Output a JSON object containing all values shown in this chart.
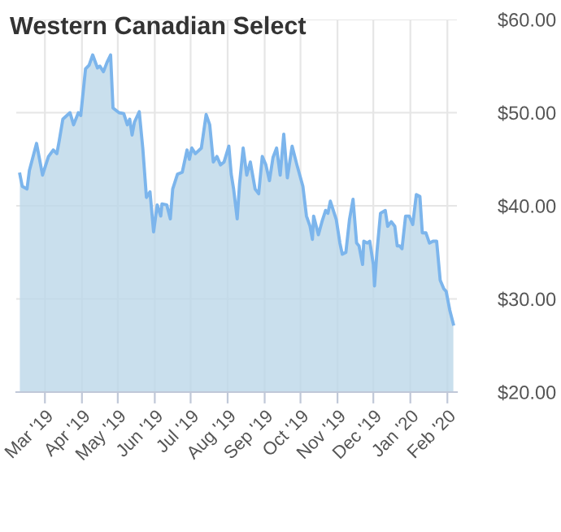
{
  "chart_data": {
    "type": "area",
    "title": "Western Canadian Select",
    "x": [
      "2019-02-08",
      "2019-02-10",
      "2019-02-14",
      "2019-02-16",
      "2019-02-22",
      "2019-02-27",
      "2019-03-04",
      "2019-03-08",
      "2019-03-11",
      "2019-03-13",
      "2019-03-16",
      "2019-03-22",
      "2019-03-25",
      "2019-03-29",
      "2019-03-31",
      "2019-04-04",
      "2019-04-07",
      "2019-04-10",
      "2019-04-14",
      "2019-04-16",
      "2019-04-19",
      "2019-04-22",
      "2019-04-25",
      "2019-04-27",
      "2019-05-02",
      "2019-05-06",
      "2019-05-09",
      "2019-05-11",
      "2019-05-13",
      "2019-05-15",
      "2019-05-19",
      "2019-05-22",
      "2019-05-25",
      "2019-05-28",
      "2019-05-31",
      "2019-06-03",
      "2019-06-06",
      "2019-06-07",
      "2019-06-11",
      "2019-06-14",
      "2019-06-16",
      "2019-06-20",
      "2019-06-24",
      "2019-06-28",
      "2019-06-30",
      "2019-07-02",
      "2019-07-05",
      "2019-07-10",
      "2019-07-14",
      "2019-07-17",
      "2019-07-20",
      "2019-07-23",
      "2019-07-26",
      "2019-07-29",
      "2019-08-02",
      "2019-08-04",
      "2019-08-06",
      "2019-08-09",
      "2019-08-11",
      "2019-08-14",
      "2019-08-17",
      "2019-08-20",
      "2019-08-24",
      "2019-08-27",
      "2019-08-30",
      "2019-09-02",
      "2019-09-05",
      "2019-09-08",
      "2019-09-11",
      "2019-09-14",
      "2019-09-17",
      "2019-09-20",
      "2019-09-24",
      "2019-09-28",
      "2019-10-03",
      "2019-10-06",
      "2019-10-09",
      "2019-10-11",
      "2019-10-12",
      "2019-10-16",
      "2019-10-19",
      "2019-10-22",
      "2019-10-24",
      "2019-10-26",
      "2019-10-31",
      "2019-11-03",
      "2019-11-05",
      "2019-11-08",
      "2019-11-11",
      "2019-11-14",
      "2019-11-17",
      "2019-11-19",
      "2019-11-22",
      "2019-11-23",
      "2019-11-26",
      "2019-11-28",
      "2019-12-01",
      "2019-12-02",
      "2019-12-04",
      "2019-12-07",
      "2019-12-11",
      "2019-12-13",
      "2019-12-16",
      "2019-12-19",
      "2019-12-21",
      "2019-12-23",
      "2019-12-25",
      "2019-12-28",
      "2019-12-31",
      "2020-01-03",
      "2020-01-06",
      "2020-01-09",
      "2020-01-11",
      "2020-01-14",
      "2020-01-17",
      "2020-01-20",
      "2020-01-23",
      "2020-01-26",
      "2020-01-29",
      "2020-01-31",
      "2020-02-03",
      "2020-02-06"
    ],
    "series": [
      {
        "color": "#7cb5ec",
        "values": [
          43.4,
          42.1,
          41.8,
          43.8,
          46.7,
          43.3,
          45.3,
          46.0,
          45.6,
          47.0,
          49.3,
          50.0,
          48.7,
          50.0,
          49.7,
          54.7,
          55.1,
          56.2,
          54.8,
          55.0,
          54.4,
          55.4,
          56.2,
          50.5,
          50.0,
          49.9,
          48.7,
          49.3,
          47.6,
          49.0,
          50.1,
          46.1,
          40.9,
          41.5,
          37.2,
          40.1,
          38.9,
          40.2,
          40.1,
          38.6,
          41.8,
          43.4,
          43.6,
          46.0,
          45.0,
          46.2,
          45.6,
          46.2,
          49.8,
          48.7,
          44.7,
          45.3,
          44.4,
          44.7,
          46.4,
          43.4,
          41.8,
          38.6,
          42.4,
          46.2,
          43.3,
          44.7,
          41.8,
          41.3,
          45.3,
          44.4,
          42.7,
          45.2,
          46.2,
          43.3,
          47.7,
          43.0,
          46.4,
          44.4,
          42.1,
          38.9,
          37.8,
          36.4,
          38.9,
          36.9,
          38.3,
          39.5,
          39.2,
          40.5,
          38.5,
          36.0,
          34.8,
          35.0,
          38.5,
          40.7,
          36.0,
          35.7,
          33.7,
          36.2,
          36.0,
          36.2,
          33.7,
          31.4,
          35.0,
          39.2,
          39.5,
          37.8,
          38.3,
          37.8,
          35.7,
          35.7,
          35.4,
          38.9,
          38.9,
          38.0,
          41.2,
          41.0,
          37.1,
          37.1,
          36.0,
          36.2,
          36.2,
          32.0,
          31.1,
          30.8,
          28.8,
          27.3
        ]
      }
    ],
    "xlim": [
      "2019-02-05",
      "2020-02-09"
    ],
    "xticks": [
      {
        "value": "2019-03-01",
        "label": "Mar '19"
      },
      {
        "value": "2019-04-01",
        "label": "Apr '19"
      },
      {
        "value": "2019-05-01",
        "label": "May '19"
      },
      {
        "value": "2019-06-01",
        "label": "Jun '19"
      },
      {
        "value": "2019-07-01",
        "label": "Jul '19"
      },
      {
        "value": "2019-08-01",
        "label": "Aug '19"
      },
      {
        "value": "2019-09-01",
        "label": "Sep '19"
      },
      {
        "value": "2019-10-01",
        "label": "Oct '19"
      },
      {
        "value": "2019-11-01",
        "label": "Nov '19"
      },
      {
        "value": "2019-12-01",
        "label": "Dec '19"
      },
      {
        "value": "2020-01-01",
        "label": "Jan '20"
      },
      {
        "value": "2020-02-01",
        "label": "Feb '20"
      }
    ],
    "ylim": [
      20,
      60
    ],
    "yticks": [
      {
        "value": 20,
        "label": "$20.00"
      },
      {
        "value": 30,
        "label": "$30.00"
      },
      {
        "value": 40,
        "label": "$40.00"
      },
      {
        "value": 50,
        "label": "$50.00"
      },
      {
        "value": 60,
        "label": "$60.00"
      }
    ],
    "grid": true
  }
}
